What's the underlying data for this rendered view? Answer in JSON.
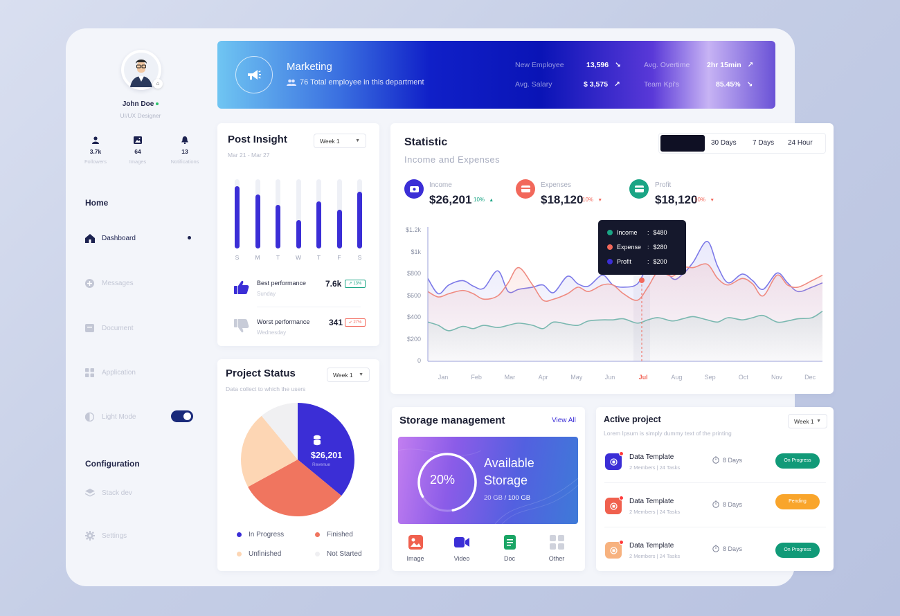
{
  "profile": {
    "name": "John Doe",
    "role": "UI/UX Designer"
  },
  "stats": [
    {
      "icon": "user-icon",
      "value": "3.7k",
      "label": "Followers"
    },
    {
      "icon": "image-icon",
      "value": "64",
      "label": "Images"
    },
    {
      "icon": "bell-icon",
      "value": "13",
      "label": "Notifications"
    }
  ],
  "sidebar": {
    "home_heading": "Home",
    "items": [
      {
        "label": "Dashboard",
        "icon": "home-icon"
      },
      {
        "label": "Messages",
        "icon": "plus-circle-icon"
      },
      {
        "label": "Document",
        "icon": "document-icon"
      },
      {
        "label": "Application",
        "icon": "grid-icon"
      },
      {
        "label": "Light Mode",
        "icon": "half-moon-icon"
      }
    ],
    "config_heading": "Configuration",
    "config_items": [
      {
        "label": "Stack dev",
        "icon": "layers-icon"
      },
      {
        "label": "Settings",
        "icon": "gear-icon"
      }
    ]
  },
  "banner": {
    "title": "Marketing",
    "subtitle": "76 Total employee in this department",
    "stats": [
      {
        "label": "New Employee",
        "value": "13,596",
        "trend": "↘"
      },
      {
        "label": "Avg. Salary",
        "value": "$ 3,575",
        "trend": "↗"
      },
      {
        "label": "Avg. Overtime",
        "value": "2hr 15min",
        "trend": "↗"
      },
      {
        "label": "Team Kpi's",
        "value": "85.45%",
        "trend": "↘"
      }
    ]
  },
  "post_insight": {
    "title": "Post Insight",
    "date_range": "Mar 21 - Mar 27",
    "dropdown": "Week 1",
    "days": [
      "S",
      "M",
      "T",
      "W",
      "T",
      "F",
      "S"
    ],
    "values": [
      0.9,
      0.78,
      0.63,
      0.41,
      0.68,
      0.56,
      0.82
    ],
    "best": {
      "label": "Best performance",
      "day": "Sunday",
      "value": "7.6k",
      "badge": "↗ 13%"
    },
    "worst": {
      "label": "Worst performance",
      "day": "Wednesday",
      "value": "341",
      "badge": "↙ 27%"
    }
  },
  "statistic": {
    "title": "Statistic",
    "subtitle": "Income and Expenses",
    "ranges": [
      "30 Days",
      "7 Days",
      "24 Hour"
    ],
    "metrics": [
      {
        "label": "Income",
        "value": "$26,201",
        "pct": "10%",
        "trend": "▲",
        "color": "#3b2ed6"
      },
      {
        "label": "Expenses",
        "value": "$18,120",
        "pct": "10%",
        "trend": "▼",
        "color": "#f2685b"
      },
      {
        "label": "Profit",
        "value": "$18,120",
        "pct": "10%",
        "trend": "▼",
        "color": "#1aa585"
      }
    ],
    "tooltip": [
      {
        "label": "Income",
        "value": "$480",
        "color": "#1aa585"
      },
      {
        "label": "Expense",
        "value": "$280",
        "color": "#f2685b"
      },
      {
        "label": "Profit",
        "value": "$200",
        "color": "#3b2ed6"
      }
    ]
  },
  "chart_data": {
    "type": "area",
    "categories": [
      "Jan",
      "Feb",
      "Mar",
      "Apr",
      "May",
      "Jun",
      "Jul",
      "Aug",
      "Sep",
      "Oct",
      "Nov",
      "Dec"
    ],
    "highlight": "Jul",
    "yticks": [
      "$1.2k",
      "$1k",
      "$800",
      "$600",
      "$400",
      "$200",
      "0"
    ],
    "ylim": [
      0,
      1200
    ],
    "series": [
      {
        "name": "Income",
        "color": "#7c79e8",
        "x": [
          0,
          0.3,
          0.6,
          1,
          1.3,
          1.6,
          2,
          2.3,
          2.6,
          3,
          3.3,
          3.6,
          4,
          4.3,
          4.6,
          5,
          5.3,
          5.6,
          6,
          6.3,
          6.6,
          7,
          7.3,
          7.6,
          8,
          8.3,
          8.6,
          9,
          9.3,
          9.6,
          10,
          10.3,
          10.6,
          11,
          11.3
        ],
        "values": [
          760,
          620,
          700,
          740,
          690,
          670,
          830,
          640,
          660,
          680,
          700,
          630,
          780,
          710,
          690,
          790,
          700,
          680,
          710,
          880,
          960,
          760,
          800,
          910,
          1100,
          870,
          720,
          800,
          740,
          660,
          810,
          720,
          640,
          680,
          720
        ]
      },
      {
        "name": "Expense",
        "color": "#ef8a80",
        "x": [
          0,
          0.3,
          0.6,
          1,
          1.3,
          1.6,
          2,
          2.3,
          2.6,
          3,
          3.3,
          3.6,
          4,
          4.3,
          4.6,
          5,
          5.3,
          5.6,
          6,
          6.3,
          6.6,
          7,
          7.3,
          7.6,
          8,
          8.3,
          8.6,
          9,
          9.3,
          9.6,
          10,
          10.3,
          10.6,
          11,
          11.3
        ],
        "values": [
          640,
          590,
          620,
          650,
          620,
          570,
          600,
          720,
          860,
          700,
          560,
          570,
          620,
          680,
          640,
          700,
          700,
          620,
          560,
          680,
          820,
          780,
          860,
          860,
          890,
          760,
          700,
          760,
          710,
          600,
          790,
          700,
          680,
          740,
          790
        ]
      },
      {
        "name": "Profit",
        "color": "#7ab8b0",
        "x": [
          0,
          0.3,
          0.6,
          1,
          1.3,
          1.6,
          2,
          2.3,
          2.6,
          3,
          3.3,
          3.6,
          4,
          4.3,
          4.6,
          5,
          5.3,
          5.6,
          6,
          6.3,
          6.6,
          7,
          7.3,
          7.6,
          8,
          8.3,
          8.6,
          9,
          9.3,
          9.6,
          10,
          10.3,
          10.6,
          11,
          11.3
        ],
        "values": [
          360,
          330,
          280,
          320,
          300,
          330,
          310,
          330,
          350,
          330,
          300,
          360,
          340,
          330,
          370,
          380,
          380,
          390,
          350,
          380,
          400,
          370,
          390,
          410,
          380,
          360,
          400,
          380,
          400,
          420,
          360,
          370,
          390,
          400,
          460
        ]
      }
    ]
  },
  "project_status": {
    "title": "Project Status",
    "subtitle": "Data collect to which the users",
    "dropdown": "Week 1",
    "center_value": "$26,201",
    "center_label": "Revenue",
    "slices": [
      {
        "label": "In Progress",
        "value": 36,
        "color": "#3b2ed6"
      },
      {
        "label": "Finished",
        "value": 31,
        "color": "#f0755f"
      },
      {
        "label": "Unfinished",
        "value": 22,
        "color": "#fdd6b4"
      },
      {
        "label": "Not Started",
        "value": 11,
        "color": "#f0f0f2"
      }
    ]
  },
  "storage": {
    "title": "Storage management",
    "view_all": "View All",
    "available_line1": "Available",
    "available_line2": "Storage",
    "percent": "20%",
    "progress": 0.2,
    "used": "20 GB",
    "total": "/ 100 GB",
    "types": [
      {
        "label": "Image",
        "icon": "image-file-icon",
        "color": "#f0604e"
      },
      {
        "label": "Video",
        "icon": "video-icon",
        "color": "#3b2ed6"
      },
      {
        "label": "Doc",
        "icon": "doc-icon",
        "color": "#1aa565"
      },
      {
        "label": "Other",
        "icon": "grid-other-icon",
        "color": "#cfd2dc"
      }
    ]
  },
  "active_project": {
    "title": "Active project",
    "subtitle": "Lorem Ipsum is simply dummy text of the printing",
    "dropdown": "Week 1",
    "items": [
      {
        "name": "Data Template",
        "meta": "2 Members | 24 Tasks",
        "days": "8 Days",
        "status": "On Progress",
        "status_color": "#119a78",
        "icon_color": "#3b2ed6"
      },
      {
        "name": "Data Template",
        "meta": "2 Members | 24 Tasks",
        "days": "8 Days",
        "status": "Pending",
        "status_color": "#f9a52b",
        "icon_color": "#f0604e"
      },
      {
        "name": "Data Template",
        "meta": "2 Members | 24 Tasks",
        "days": "8 Days",
        "status": "On Progress",
        "status_color": "#119a78",
        "icon_color": "#f7b27f"
      }
    ]
  }
}
